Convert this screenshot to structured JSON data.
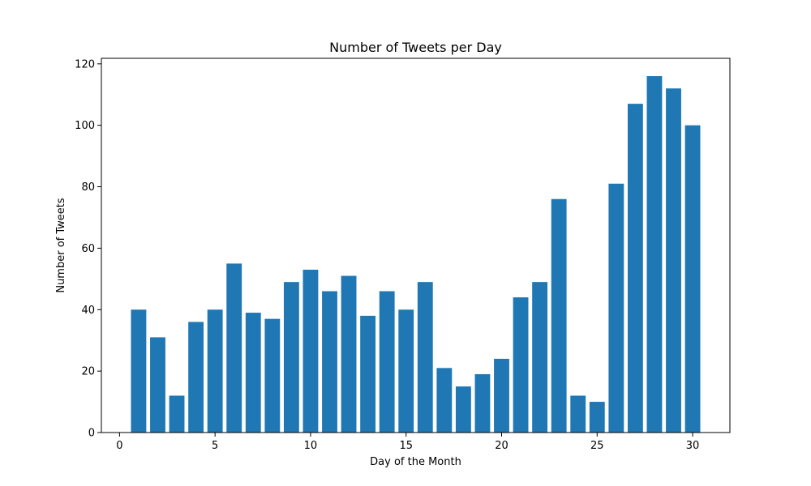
{
  "chart_data": {
    "type": "bar",
    "title": "Number of Tweets per Day",
    "xlabel": "Day of the Month",
    "ylabel": "Number of Tweets",
    "x": [
      1,
      2,
      3,
      4,
      5,
      6,
      7,
      8,
      9,
      10,
      11,
      12,
      13,
      14,
      15,
      16,
      17,
      18,
      19,
      20,
      21,
      22,
      23,
      24,
      25,
      26,
      27,
      28,
      29,
      30
    ],
    "values": [
      40,
      31,
      12,
      36,
      40,
      55,
      39,
      37,
      49,
      53,
      46,
      51,
      38,
      46,
      40,
      49,
      21,
      15,
      19,
      24,
      44,
      49,
      76,
      12,
      10,
      81,
      107,
      116,
      112,
      100
    ],
    "xlim": [
      -0.95,
      31.95
    ],
    "ylim": [
      0,
      121.8
    ],
    "xticks": [
      0,
      5,
      10,
      15,
      20,
      25,
      30
    ],
    "yticks": [
      0,
      20,
      40,
      60,
      80,
      100,
      120
    ],
    "bar_color": "#1f77b4",
    "grid": false,
    "legend": "none"
  }
}
